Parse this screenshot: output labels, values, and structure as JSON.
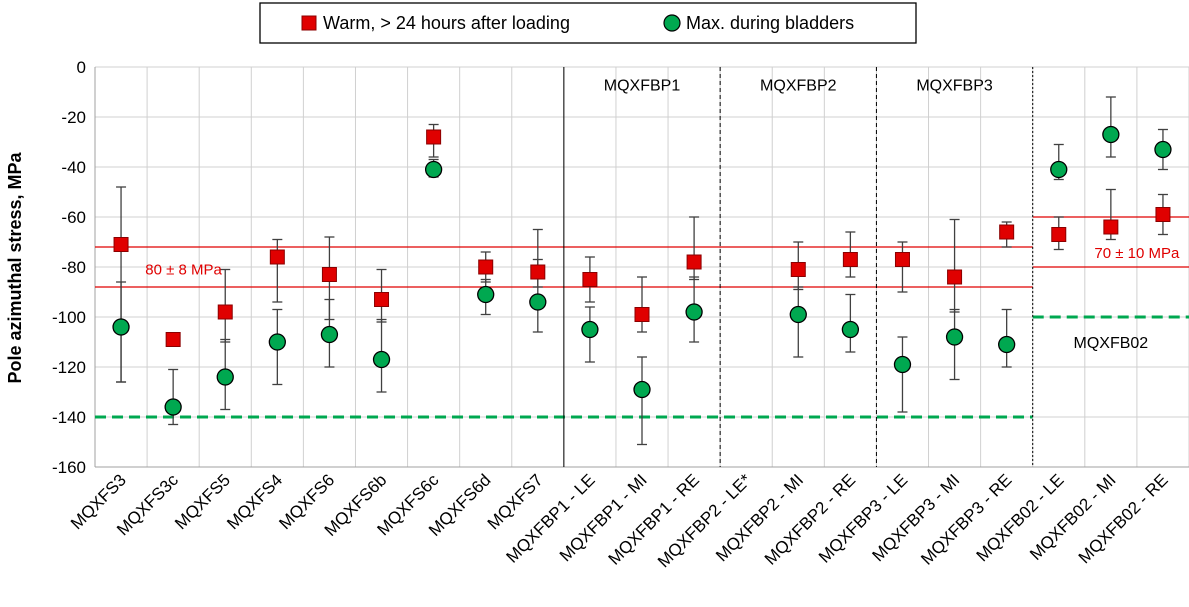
{
  "chart_data": {
    "type": "scatter",
    "ylabel": "Pole azimuthal stress, MPa",
    "ylim": [
      -160,
      0
    ],
    "yticks": [
      0,
      -20,
      -40,
      -60,
      -80,
      -100,
      -120,
      -140,
      -160
    ],
    "grid": true,
    "legend_placement": "top",
    "categories": [
      "MQXFS3",
      "MQXFS3c",
      "MQXFS5",
      "MQXFS4",
      "MQXFS6",
      "MQXFS6b",
      "MQXFS6c",
      "MQXFS6d",
      "MQXFS7",
      "MQXFBP1 - LE",
      "MQXFBP1 - MI",
      "MQXFBP1 - RE",
      "MQXFBP2 - LE*",
      "MQXFBP2 - MI",
      "MQXFBP2 - RE",
      "MQXFBP3 - LE",
      "MQXFBP3 - MI",
      "MQXFBP3 - RE",
      "MQXFB02 - LE",
      "MQXFB02 - MI",
      "MQXFB02 - RE"
    ],
    "series": [
      {
        "name": "Warm, > 24 hours after loading",
        "marker": "square",
        "color": "#e00000",
        "values": [
          -71,
          -109,
          -98,
          -76,
          -83,
          -93,
          -28,
          -80,
          -82,
          -85,
          -99,
          -78,
          null,
          -81,
          -77,
          -77,
          -84,
          -66,
          -67,
          -64,
          -59
        ],
        "err_low": [
          -126,
          null,
          -110,
          -94,
          -101,
          -102,
          -36,
          -86,
          -88,
          -94,
          -106,
          -85,
          null,
          -89,
          -84,
          -90,
          -98,
          -72,
          -73,
          -69,
          -67
        ],
        "err_high": [
          -48,
          -94,
          -81,
          -69,
          -68,
          -81,
          -23,
          -74,
          -65,
          -76,
          -84,
          -60,
          null,
          -70,
          -66,
          -70,
          -61,
          -62,
          -60,
          -49,
          -51
        ]
      },
      {
        "name": "Max. during bladders",
        "marker": "circle",
        "color": "#00a850",
        "values": [
          -104,
          -136,
          -124,
          -110,
          -107,
          -117,
          -41,
          -91,
          -94,
          -105,
          -129,
          -98,
          null,
          -99,
          -105,
          -119,
          -108,
          -111,
          -41,
          -27,
          -33
        ],
        "err_low": [
          -126,
          -143,
          -137,
          -127,
          -120,
          -130,
          -44,
          -99,
          -106,
          -118,
          -151,
          -110,
          null,
          -116,
          -114,
          -138,
          -125,
          -120,
          -45,
          -36,
          -41
        ],
        "err_high": [
          -86,
          -121,
          -109,
          -97,
          -93,
          -101,
          -37,
          -85,
          -77,
          -96,
          -116,
          -84,
          null,
          -88,
          -91,
          -108,
          -97,
          -97,
          -31,
          -12,
          -25
        ]
      }
    ],
    "reference_lines": [
      {
        "value": -72,
        "from": 0,
        "to": 17,
        "color": "#e00000",
        "style": "solid"
      },
      {
        "value": -88,
        "from": 0,
        "to": 17,
        "color": "#e00000",
        "style": "solid"
      },
      {
        "value": -60,
        "from": 18,
        "to": 20,
        "color": "#e00000",
        "style": "solid"
      },
      {
        "value": -80,
        "from": 18,
        "to": 20,
        "color": "#e00000",
        "style": "solid"
      },
      {
        "value": -140,
        "from": 0,
        "to": 17,
        "color": "#00a850",
        "style": "dashed"
      },
      {
        "value": -100,
        "from": 18,
        "to": 20,
        "color": "#00a850",
        "style": "dashed"
      }
    ],
    "dividers": [
      {
        "after": 8,
        "style": "solid"
      },
      {
        "after": 11,
        "style": "dashed"
      },
      {
        "after": 14,
        "style": "dashed"
      },
      {
        "after": 17,
        "style": "dotted"
      }
    ],
    "annotations": [
      {
        "text": "MQXFBP1",
        "category": 10,
        "y": -7,
        "color": "#000000"
      },
      {
        "text": "MQXFBP2",
        "category": 13,
        "y": -7,
        "color": "#000000"
      },
      {
        "text": "MQXFBP3",
        "category": 16,
        "y": -7,
        "color": "#000000"
      },
      {
        "text": "MQXFB02",
        "category": 19,
        "y": -110,
        "color": "#000000"
      },
      {
        "text": "80 ± 8 MPa",
        "category": 1.2,
        "y": -80.5,
        "color": "#e00000"
      },
      {
        "text": "70 ± 10 MPa",
        "category": 19.5,
        "y": -74,
        "color": "#e00000"
      }
    ]
  }
}
